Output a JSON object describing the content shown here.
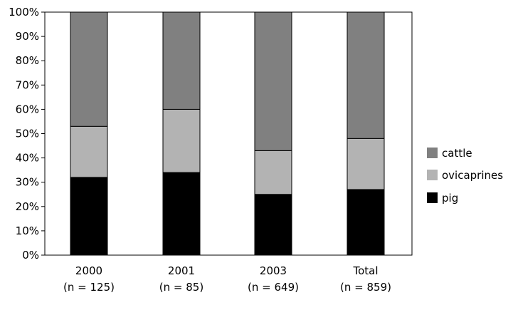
{
  "chart_data": {
    "type": "bar",
    "stacked": true,
    "title": "",
    "xlabel": "",
    "ylabel": "",
    "ylim": [
      0,
      100
    ],
    "y_unit": "%",
    "y_ticks": [
      "0%",
      "10%",
      "20%",
      "30%",
      "40%",
      "50%",
      "60%",
      "70%",
      "80%",
      "90%",
      "100%"
    ],
    "categories": [
      {
        "year": "2000",
        "n": "(n = 125)"
      },
      {
        "year": "2001",
        "n": "(n = 85)"
      },
      {
        "year": "2003",
        "n": "(n = 649)"
      },
      {
        "year": "Total",
        "n": "(n = 859)"
      }
    ],
    "series": [
      {
        "name": "pig",
        "color": "#000000",
        "values": [
          32,
          34,
          25,
          27
        ]
      },
      {
        "name": "ovicaprines",
        "color": "#b3b3b3",
        "values": [
          21,
          26,
          18,
          21
        ]
      },
      {
        "name": "cattle",
        "color": "#808080",
        "values": [
          47,
          40,
          57,
          52
        ]
      }
    ],
    "legend": {
      "position": "right",
      "order": [
        "cattle",
        "ovicaprines",
        "pig"
      ]
    },
    "grid": false
  }
}
